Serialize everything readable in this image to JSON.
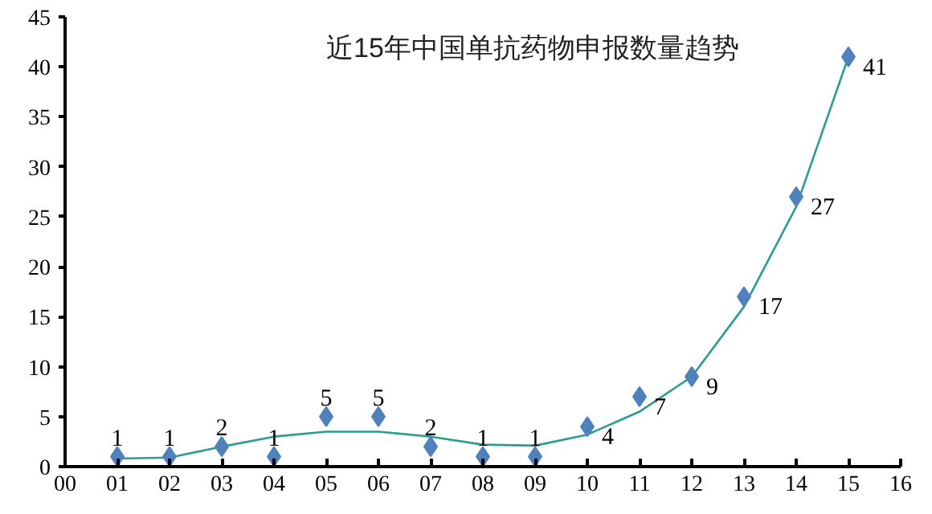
{
  "chart_data": {
    "type": "scatter",
    "title": "近15年中国单抗药物申报数量趋势",
    "x": [
      1,
      2,
      3,
      4,
      5,
      6,
      7,
      8,
      9,
      10,
      11,
      12,
      13,
      14,
      15
    ],
    "series": [
      {
        "color": "#4f81bd",
        "marker": "diamond",
        "data_labels": true,
        "values": [
          1,
          1,
          2,
          1,
          5,
          5,
          2,
          1,
          1,
          4,
          7,
          9,
          17,
          27,
          41
        ]
      },
      {
        "type": "line",
        "color": "#2a9d8f",
        "x": [
          1,
          2,
          3,
          4,
          5,
          6,
          7,
          8,
          9,
          10,
          11,
          12,
          13,
          14,
          15
        ],
        "values": [
          0.8,
          0.9,
          2,
          3,
          3.5,
          3.5,
          3,
          2.2,
          2.1,
          3.2,
          5.5,
          9,
          16,
          26,
          41
        ]
      }
    ],
    "grid": false,
    "xlim": [
      0,
      16
    ],
    "xticks": [
      {
        "value": 0,
        "label": "00"
      },
      {
        "value": 1,
        "label": "01"
      },
      {
        "value": 2,
        "label": "02"
      },
      {
        "value": 3,
        "label": "03"
      },
      {
        "value": 4,
        "label": "04"
      },
      {
        "value": 5,
        "label": "05"
      },
      {
        "value": 6,
        "label": "06"
      },
      {
        "value": 7,
        "label": "07"
      },
      {
        "value": 8,
        "label": "08"
      },
      {
        "value": 9,
        "label": "09"
      },
      {
        "value": 10,
        "label": "10"
      },
      {
        "value": 11,
        "label": "11"
      },
      {
        "value": 12,
        "label": "12"
      },
      {
        "value": 13,
        "label": "13"
      },
      {
        "value": 14,
        "label": "14"
      },
      {
        "value": 15,
        "label": "15"
      },
      {
        "value": 16,
        "label": "16"
      }
    ],
    "ylim": [
      0,
      45
    ],
    "yticks": [
      0,
      5,
      10,
      15,
      20,
      25,
      30,
      35,
      40,
      45
    ]
  }
}
